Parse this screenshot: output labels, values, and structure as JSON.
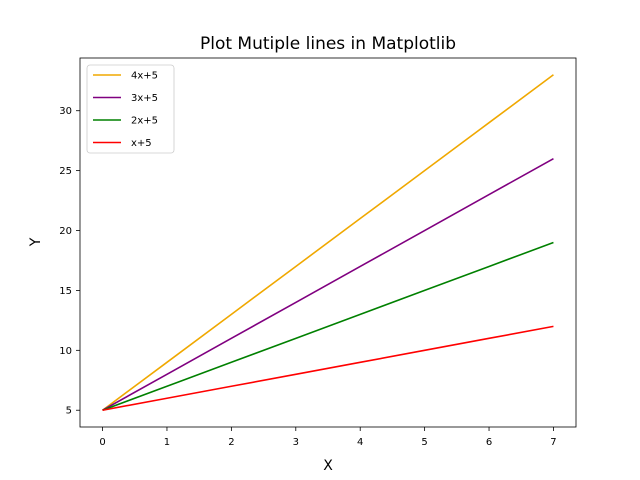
{
  "chart_data": {
    "type": "line",
    "title": "Plot Mutiple lines in Matplotlib",
    "xlabel": "X",
    "ylabel": "Y",
    "x": [
      0,
      1,
      2,
      3,
      4,
      5,
      6,
      7
    ],
    "series": [
      {
        "name": "4x+5",
        "color": "#f0a800",
        "values": [
          5,
          9,
          13,
          17,
          21,
          25,
          29,
          33
        ]
      },
      {
        "name": "3x+5",
        "color": "#800080",
        "values": [
          5,
          8,
          11,
          14,
          17,
          20,
          23,
          26
        ]
      },
      {
        "name": "2x+5",
        "color": "#008000",
        "values": [
          5,
          7,
          9,
          11,
          13,
          15,
          17,
          19
        ]
      },
      {
        "name": "x+5",
        "color": "#ff0000",
        "values": [
          5,
          6,
          7,
          8,
          9,
          10,
          11,
          12
        ]
      }
    ],
    "xticks": [
      "0",
      "1",
      "2",
      "3",
      "4",
      "5",
      "6",
      "7"
    ],
    "yticks": [
      "5",
      "10",
      "15",
      "20",
      "25",
      "30"
    ],
    "xlim": [
      -0.35,
      7.35
    ],
    "ylim": [
      3.6,
      34.4
    ],
    "grid": false,
    "legend_position": "top-left"
  }
}
